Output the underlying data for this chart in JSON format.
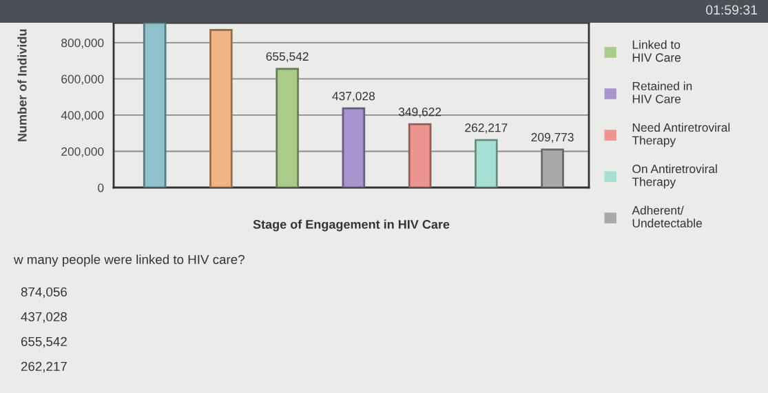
{
  "chart_data": {
    "type": "bar",
    "xlabel": "Stage of Engagement in HIV Care",
    "ylabel": "Number of Individu",
    "categories": [
      null,
      null,
      null,
      null,
      null,
      null,
      null
    ],
    "series": [
      {
        "color": "#8fc2cb",
        "values": [
          910000,
          null,
          null,
          null,
          null,
          null,
          null
        ]
      },
      {
        "color": "#f1b485",
        "values": [
          null,
          870000,
          null,
          null,
          null,
          null,
          null
        ]
      },
      {
        "name": "Linked to\nHIV Care",
        "color": "#a9cc89",
        "values": [
          null,
          null,
          655542,
          null,
          null,
          null,
          null
        ],
        "value_labels": [
          null,
          null,
          "655,542",
          null,
          null,
          null,
          null
        ]
      },
      {
        "name": "Retained in\nHIV Care",
        "color": "#a994cf",
        "values": [
          null,
          null,
          null,
          437028,
          null,
          null,
          null
        ],
        "value_labels": [
          null,
          null,
          null,
          "437,028",
          null,
          null,
          null
        ]
      },
      {
        "name": "Need Antiretroviral\nTherapy",
        "color": "#ec9590",
        "values": [
          null,
          null,
          null,
          null,
          349622,
          null,
          null
        ],
        "value_labels": [
          null,
          null,
          null,
          null,
          "349,622",
          null,
          null
        ]
      },
      {
        "name": "On Antiretroviral\nTherapy",
        "color": "#a6e0d4",
        "values": [
          null,
          null,
          null,
          null,
          null,
          262217,
          null
        ],
        "value_labels": [
          null,
          null,
          null,
          null,
          null,
          "262,217",
          null
        ]
      },
      {
        "name": "Adherent/\nUndetectable",
        "color": "#a9a9a9",
        "values": [
          null,
          null,
          null,
          null,
          null,
          null,
          209773
        ],
        "value_labels": [
          null,
          null,
          null,
          null,
          null,
          null,
          "209,773"
        ]
      }
    ],
    "ylim": [
      0,
      910000
    ],
    "yticks": [
      0,
      {
        "value": 200000,
        "label": "200,000"
      },
      {
        "value": 400000,
        "label": "400,000"
      },
      {
        "value": 600000,
        "label": "600,000"
      },
      {
        "value": 800000,
        "label": "800,000"
      }
    ],
    "grid": "y",
    "legend": "right",
    "annotations": [
      "01:59:31",
      "w many people were linked to HIV care?",
      "874,056",
      "437,028",
      "655,542",
      "262,217"
    ]
  }
}
